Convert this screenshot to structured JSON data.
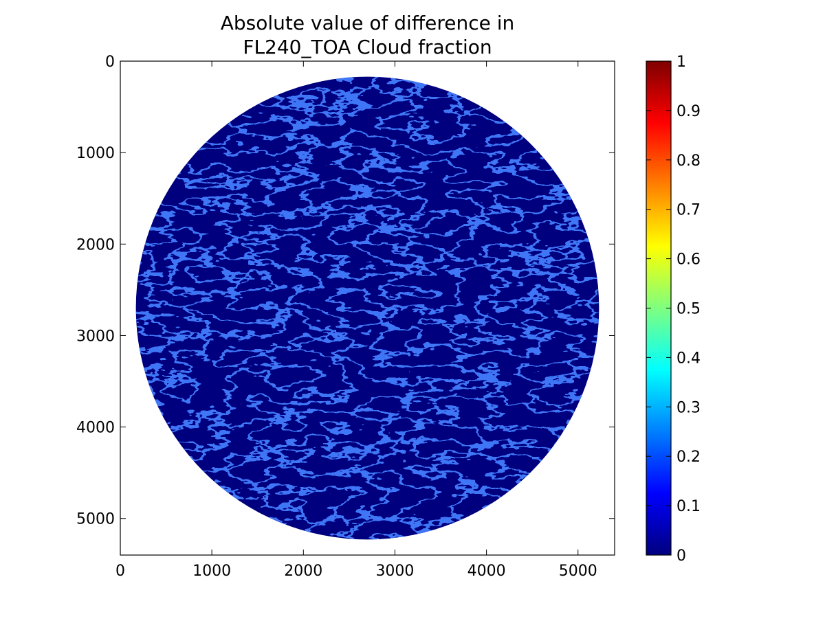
{
  "chart_data": {
    "type": "heatmap",
    "title_lines": [
      "Absolute value of difference in",
      "FL240_TOA Cloud fraction"
    ],
    "xlim": [
      0,
      5400
    ],
    "ylim": [
      5400,
      0
    ],
    "x_ticks": [
      0,
      1000,
      2000,
      3000,
      4000,
      5000
    ],
    "y_ticks": [
      0,
      1000,
      2000,
      3000,
      4000,
      5000
    ],
    "x_tick_labels": [
      "0",
      "1000",
      "2000",
      "3000",
      "4000",
      "5000"
    ],
    "y_tick_labels": [
      "0",
      "1000",
      "2000",
      "3000",
      "4000",
      "5000"
    ],
    "disk": {
      "center_x": 2700,
      "center_y": 2700,
      "radius": 2530
    },
    "dominant_value": 0.0,
    "feature_value_range": [
      0.05,
      0.25
    ],
    "colormap": "jet",
    "colorbar": {
      "range": [
        0,
        1
      ],
      "ticks": [
        0,
        0.1,
        0.2,
        0.3,
        0.4,
        0.5,
        0.6,
        0.7,
        0.8,
        0.9,
        1
      ],
      "tick_labels": [
        "0",
        "0.1",
        "0.2",
        "0.3",
        "0.4",
        "0.5",
        "0.6",
        "0.7",
        "0.8",
        "0.9",
        "1"
      ]
    },
    "grid": false,
    "legend": "none",
    "colors": {
      "background": "#00007f",
      "feature_low": "#0a2bd6",
      "feature_high": "#3b7bff",
      "jet_stops": [
        "#00007f",
        "#0000ff",
        "#007fff",
        "#00ffff",
        "#7fff7f",
        "#ffff00",
        "#ff7f00",
        "#ff0000",
        "#7f0000"
      ]
    }
  }
}
